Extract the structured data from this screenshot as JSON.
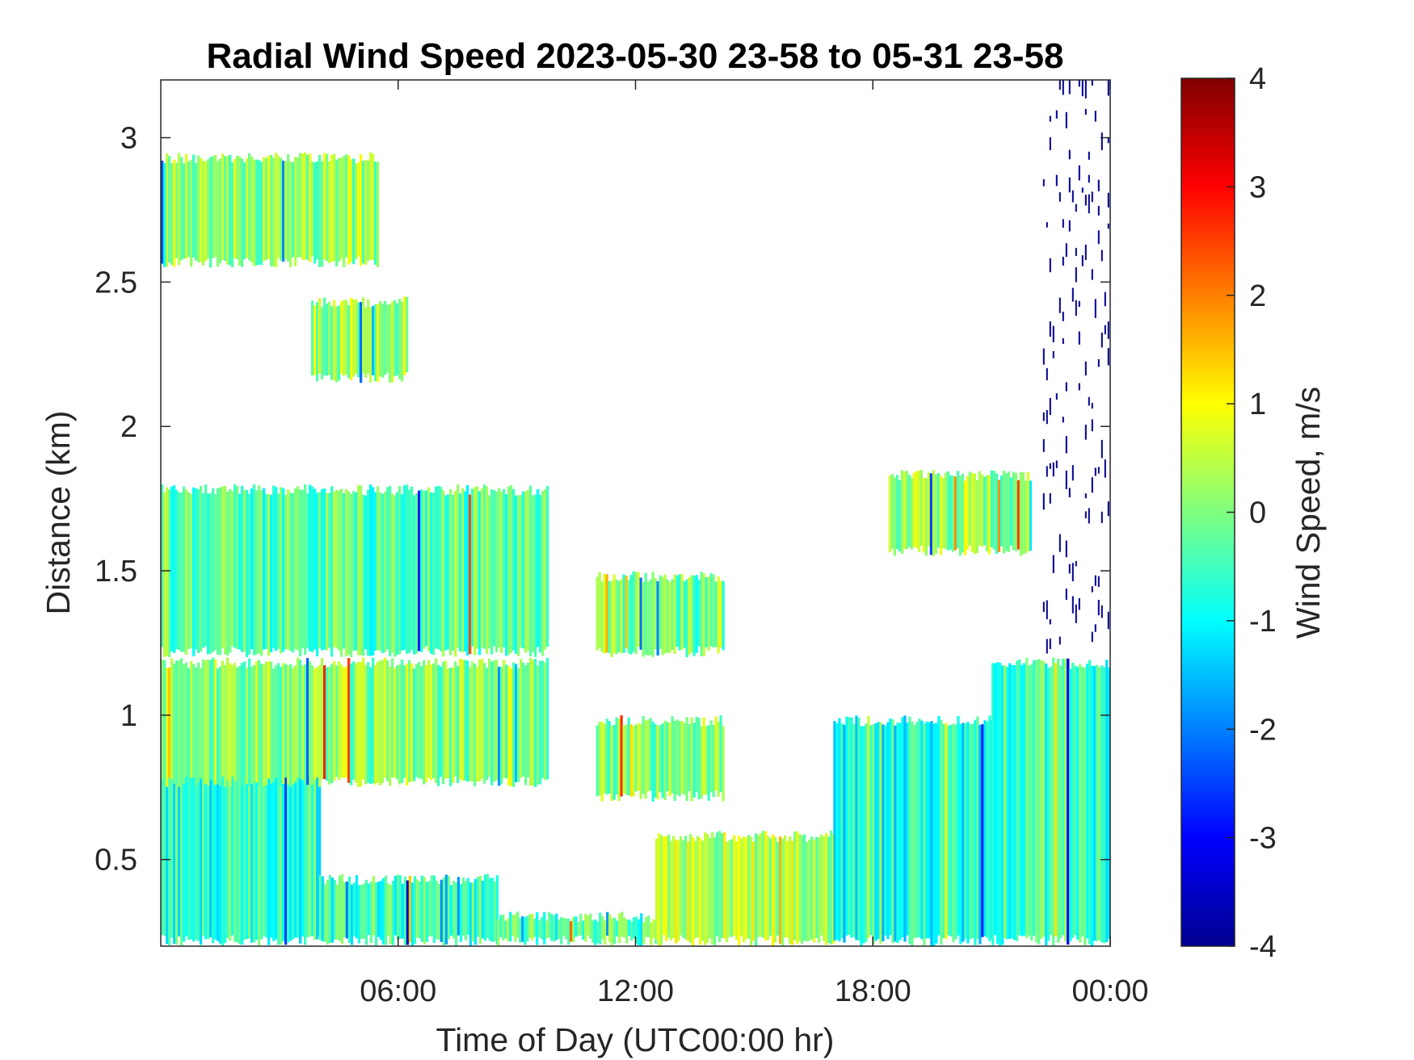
{
  "chart_data": {
    "type": "heatmap",
    "title": "Radial Wind Speed 2023-05-30 23-58 to 05-31 23-58",
    "xlabel": "Time of Day (UTC00:00 hr)",
    "ylabel": "Distance (km)",
    "xlim": [
      0,
      24
    ],
    "ylim": [
      0.2,
      3.2
    ],
    "x_ticks": [
      {
        "value": 6,
        "label": "06:00"
      },
      {
        "value": 12,
        "label": "12:00"
      },
      {
        "value": 18,
        "label": "18:00"
      },
      {
        "value": 24,
        "label": "00:00"
      }
    ],
    "y_ticks": [
      {
        "value": 0.5,
        "label": "0.5"
      },
      {
        "value": 1,
        "label": "1"
      },
      {
        "value": 1.5,
        "label": "1.5"
      },
      {
        "value": 2,
        "label": "2"
      },
      {
        "value": 2.5,
        "label": "2.5"
      },
      {
        "value": 3,
        "label": "3"
      }
    ],
    "colorbar": {
      "label": "Wind Speed, m/s",
      "colormap": "jet",
      "range": [
        -4,
        4
      ],
      "ticks": [
        "4",
        "3",
        "2",
        "1",
        "0",
        "-1",
        "-2",
        "-3",
        "-4"
      ]
    },
    "grid": false,
    "regions": [
      {
        "t0": 0,
        "t1": 4.0,
        "d0": 0.2,
        "d1": 1.05,
        "v": -0.6
      },
      {
        "t0": 4.0,
        "t1": 8.5,
        "d0": 0.2,
        "d1": 0.45,
        "v": -0.5
      },
      {
        "t0": 8.5,
        "t1": 12.5,
        "d0": 0.2,
        "d1": 0.32,
        "v": -0.2
      },
      {
        "t0": 12.5,
        "t1": 17.0,
        "d0": 0.2,
        "d1": 0.6,
        "v": 0.4
      },
      {
        "t0": 17.0,
        "t1": 21.0,
        "d0": 0.2,
        "d1": 1.0,
        "v": -0.8
      },
      {
        "t0": 21.0,
        "t1": 24.0,
        "d0": 0.2,
        "d1": 1.2,
        "v": -0.5
      },
      {
        "t0": 0,
        "t1": 9.8,
        "d0": 1.2,
        "d1": 1.8,
        "v": -0.3
      },
      {
        "t0": 0,
        "t1": 9.8,
        "d0": 0.75,
        "d1": 1.2,
        "v": 0.1
      },
      {
        "t0": 11.0,
        "t1": 14.2,
        "d0": 0.7,
        "d1": 1.0,
        "v": 0.1
      },
      {
        "t0": 11.0,
        "t1": 14.2,
        "d0": 1.2,
        "d1": 1.5,
        "v": 0.0
      },
      {
        "t0": 18.4,
        "t1": 22.0,
        "d0": 1.55,
        "d1": 1.85,
        "v": 0.1
      },
      {
        "t0": 0,
        "t1": 5.5,
        "d0": 2.55,
        "d1": 2.95,
        "v": 0.2
      },
      {
        "t0": 3.8,
        "t1": 6.2,
        "d0": 2.15,
        "d1": 2.45,
        "v": 0.3
      },
      {
        "t0": 22.3,
        "t1": 24.0,
        "d0": 1.2,
        "d1": 3.2,
        "v": -4.0
      }
    ]
  }
}
